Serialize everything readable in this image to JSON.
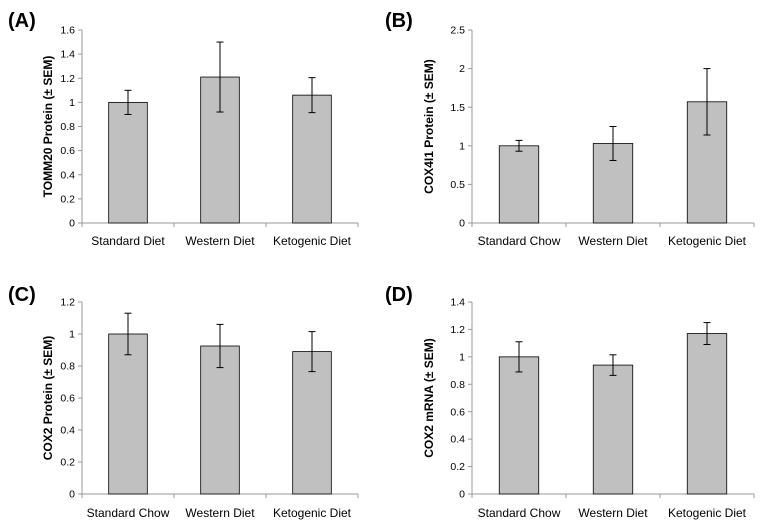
{
  "chart_data": [
    {
      "type": "bar",
      "panel_label": "(A)",
      "ylabel": "TOMM20 Protein (± SEM)",
      "categories": [
        "Standard Diet",
        "Western Diet",
        "Ketogenic Diet"
      ],
      "values": [
        1.0,
        1.21,
        1.06
      ],
      "error": [
        0.1,
        0.29,
        0.145
      ],
      "ylim": [
        0,
        1.6
      ],
      "yticks": [
        0,
        0.2,
        0.4,
        0.6,
        0.8,
        1,
        1.2,
        1.4,
        1.6
      ],
      "ytick_labels": [
        "0",
        "0.2",
        "0.4",
        "0.6",
        "0.8",
        "1",
        "1.2",
        "1.4",
        "1.6"
      ],
      "grid": false,
      "bar_color": "#c0c0c0"
    },
    {
      "type": "bar",
      "panel_label": "(B)",
      "ylabel": "COX4I1 Protein (± SEM)",
      "categories": [
        "Standard Chow",
        "Western Diet",
        "Ketogenic Diet"
      ],
      "values": [
        1.0,
        1.03,
        1.57
      ],
      "error": [
        0.07,
        0.22,
        0.43
      ],
      "ylim": [
        0,
        2.5
      ],
      "yticks": [
        0,
        0.5,
        1,
        1.5,
        2,
        2.5
      ],
      "ytick_labels": [
        "0",
        "0.5",
        "1",
        "1.5",
        "2",
        "2.5"
      ],
      "grid": false,
      "bar_color": "#c0c0c0"
    },
    {
      "type": "bar",
      "panel_label": "(C)",
      "ylabel": "COX2 Protein (± SEM)",
      "categories": [
        "Standard Chow",
        "Western Diet",
        "Ketogenic Diet"
      ],
      "values": [
        1.0,
        0.925,
        0.89
      ],
      "error": [
        0.13,
        0.135,
        0.125
      ],
      "ylim": [
        0,
        1.2
      ],
      "yticks": [
        0,
        0.2,
        0.4,
        0.6,
        0.8,
        1,
        1.2
      ],
      "ytick_labels": [
        "0",
        "0.2",
        "0.4",
        "0.6",
        "0.8",
        "1",
        "1.2"
      ],
      "grid": false,
      "bar_color": "#c0c0c0"
    },
    {
      "type": "bar",
      "panel_label": "(D)",
      "ylabel": "COX2 mRNA (± SEM)",
      "categories": [
        "Standard Chow",
        "Western Diet",
        "Ketogenic Diet"
      ],
      "values": [
        1.0,
        0.94,
        1.17
      ],
      "error": [
        0.11,
        0.075,
        0.08
      ],
      "ylim": [
        0,
        1.4
      ],
      "yticks": [
        0,
        0.2,
        0.4,
        0.6,
        0.8,
        1,
        1.2,
        1.4
      ],
      "ytick_labels": [
        "0",
        "0.2",
        "0.4",
        "0.6",
        "0.8",
        "1",
        "1.2",
        "1.4"
      ],
      "grid": false,
      "bar_color": "#c0c0c0"
    }
  ]
}
